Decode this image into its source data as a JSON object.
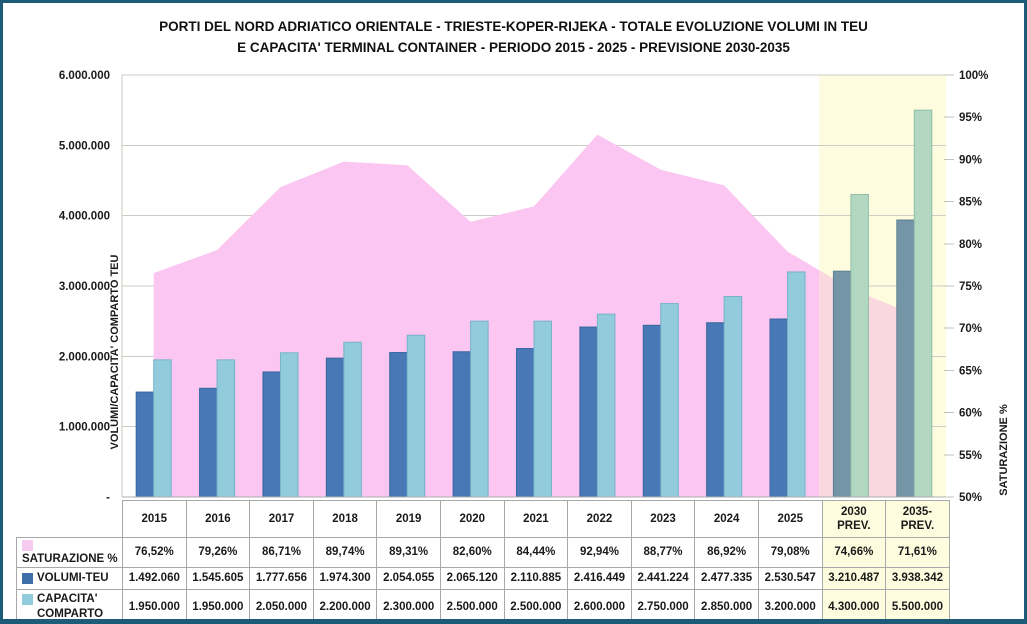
{
  "title": {
    "line1": "PORTI DEL NORD ADRIATICO ORIENTALE - TRIESTE-KOPER-RIJEKA - TOTALE EVOLUZIONE VOLUMI IN TEU",
    "line2": "E CAPACITA' TERMINAL CONTAINER - PERIODO 2015 - 2025 - PREVISIONE 2030-2035"
  },
  "chart_data": {
    "type": "combo-bar-area",
    "categories": [
      "2015",
      "2016",
      "2017",
      "2018",
      "2019",
      "2020",
      "2021",
      "2022",
      "2023",
      "2024",
      "2025",
      "2030\nPREV.",
      "2035-\nPREV."
    ],
    "series": [
      {
        "name": "SATURAZIONE %",
        "type": "area",
        "axis": "right",
        "values": [
          76.52,
          79.26,
          86.71,
          89.74,
          89.31,
          82.6,
          84.44,
          92.94,
          88.77,
          86.92,
          79.08,
          74.66,
          71.61
        ],
        "labels": [
          "76,52%",
          "79,26%",
          "86,71%",
          "89,74%",
          "89,31%",
          "82,60%",
          "84,44%",
          "92,94%",
          "88,77%",
          "86,92%",
          "79,08%",
          "74,66%",
          "71,61%"
        ]
      },
      {
        "name": "VOLUMI-TEU",
        "type": "bar",
        "axis": "left",
        "values": [
          1492060,
          1545605,
          1777656,
          1974300,
          2054055,
          2065120,
          2110885,
          2416449,
          2441224,
          2477335,
          2530547,
          3210487,
          3938342
        ],
        "labels": [
          "1.492.060",
          "1.545.605",
          "1.777.656",
          "1.974.300",
          "2.054.055",
          "2.065.120",
          "2.110.885",
          "2.416.449",
          "2.441.224",
          "2.477.335",
          "2.530.547",
          "3.210.487",
          "3.938.342"
        ]
      },
      {
        "name": "CAPACITA' COMPARTO",
        "type": "bar",
        "axis": "left",
        "values": [
          1950000,
          1950000,
          2050000,
          2200000,
          2300000,
          2500000,
          2500000,
          2600000,
          2750000,
          2850000,
          3200000,
          4300000,
          5500000
        ],
        "labels": [
          "1.950.000",
          "1.950.000",
          "2.050.000",
          "2.200.000",
          "2.300.000",
          "2.500.000",
          "2.500.000",
          "2.600.000",
          "2.750.000",
          "2.850.000",
          "3.200.000",
          "4.300.000",
          "5.500.000"
        ]
      }
    ],
    "left_axis": {
      "title": "VOLUMI/CAPACITA' COMPARTO  TEU",
      "min": 0,
      "max": 6000000,
      "tick_labels": [
        "6.000.000",
        "5.000.000",
        "4.000.000",
        "3.000.000",
        "2.000.000",
        "1.000.000",
        "-"
      ]
    },
    "right_axis": {
      "title": "SATURAZIONE %",
      "min": 50,
      "max": 100,
      "tick_labels": [
        "100%",
        "95%",
        "90%",
        "85%",
        "80%",
        "75%",
        "70%",
        "65%",
        "60%",
        "55%",
        "50%"
      ]
    },
    "forecast_start_index": 11,
    "grid": true,
    "legend_position": "table-left",
    "colors": {
      "volume_bar": "#4879B6",
      "volume_bar_forecast": "#7495A6",
      "capacity_bar": "#92CBDC",
      "capacity_bar_forecast": "#B3D8C2",
      "saturation_area": "#FBC6F1",
      "saturation_area_forecast": "#FBD7E0",
      "forecast_background": "#FDFCDE",
      "gridline": "#CDCDC5"
    }
  },
  "table": {
    "row_labels": [
      {
        "label": "SATURAZIONE %",
        "chip": "#F5CBF1"
      },
      {
        "label": "VOLUMI-TEU",
        "chip": "#3F6FA8"
      },
      {
        "label": "CAPACITA'\nCOMPARTO",
        "chip": "#92CBDC"
      }
    ]
  }
}
